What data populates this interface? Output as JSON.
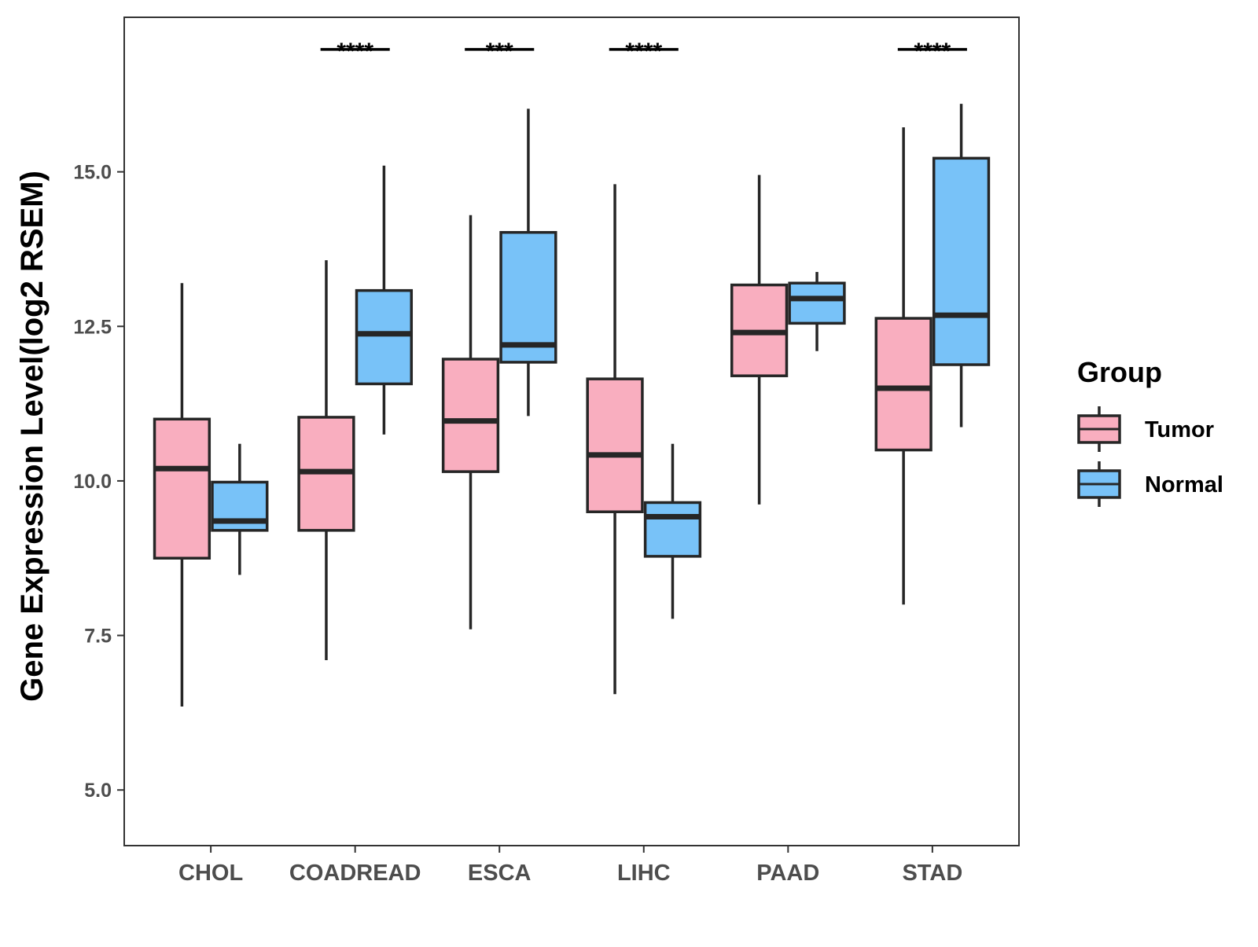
{
  "chart_data": {
    "type": "boxplot",
    "title": "",
    "xlabel": "",
    "ylabel": "Gene Expression Level(log2 RSEM)",
    "ylim": [
      4.1,
      17.5
    ],
    "yticks": [
      5.0,
      7.5,
      10.0,
      12.5,
      15.0
    ],
    "ytick_labels": [
      "5.0",
      "7.5",
      "10.0",
      "12.5",
      "15.0"
    ],
    "grid": false,
    "categories": [
      "CHOL",
      "COADREAD",
      "ESCA",
      "LIHC",
      "PAAD",
      "STAD"
    ],
    "legend": {
      "title": "Group",
      "position": "right",
      "entries": [
        "Tumor",
        "Normal"
      ]
    },
    "series": [
      {
        "name": "Tumor",
        "color": "#F9AEBF",
        "boxes": [
          {
            "min": 6.35,
            "q1": 8.75,
            "median": 10.2,
            "q3": 11.0,
            "max": 13.2
          },
          {
            "min": 7.1,
            "q1": 9.2,
            "median": 10.15,
            "q3": 11.03,
            "max": 13.57
          },
          {
            "min": 7.6,
            "q1": 10.15,
            "median": 10.97,
            "q3": 11.97,
            "max": 14.3
          },
          {
            "min": 6.55,
            "q1": 9.5,
            "median": 10.42,
            "q3": 11.65,
            "max": 14.8
          },
          {
            "min": 9.62,
            "q1": 11.7,
            "median": 12.4,
            "q3": 13.17,
            "max": 14.95
          },
          {
            "min": 8.0,
            "q1": 10.5,
            "median": 11.5,
            "q3": 12.63,
            "max": 15.72
          }
        ]
      },
      {
        "name": "Normal",
        "color": "#78C2F8",
        "boxes": [
          {
            "min": 8.48,
            "q1": 9.2,
            "median": 9.35,
            "q3": 9.98,
            "max": 10.6
          },
          {
            "min": 10.75,
            "q1": 11.57,
            "median": 12.38,
            "q3": 13.08,
            "max": 15.1
          },
          {
            "min": 11.05,
            "q1": 11.92,
            "median": 12.2,
            "q3": 14.02,
            "max": 16.02
          },
          {
            "min": 7.77,
            "q1": 8.78,
            "median": 9.42,
            "q3": 9.65,
            "max": 10.6
          },
          {
            "min": 12.1,
            "q1": 12.55,
            "median": 12.95,
            "q3": 13.2,
            "max": 13.38
          },
          {
            "min": 10.87,
            "q1": 11.88,
            "median": 12.68,
            "q3": 15.22,
            "max": 16.1
          }
        ]
      }
    ],
    "significance": [
      {
        "category": "COADREAD",
        "label": "****",
        "y": 16.98
      },
      {
        "category": "ESCA",
        "label": "***",
        "y": 16.98
      },
      {
        "category": "LIHC",
        "label": "****",
        "y": 16.98
      },
      {
        "category": "STAD",
        "label": "****",
        "y": 16.98
      }
    ]
  }
}
